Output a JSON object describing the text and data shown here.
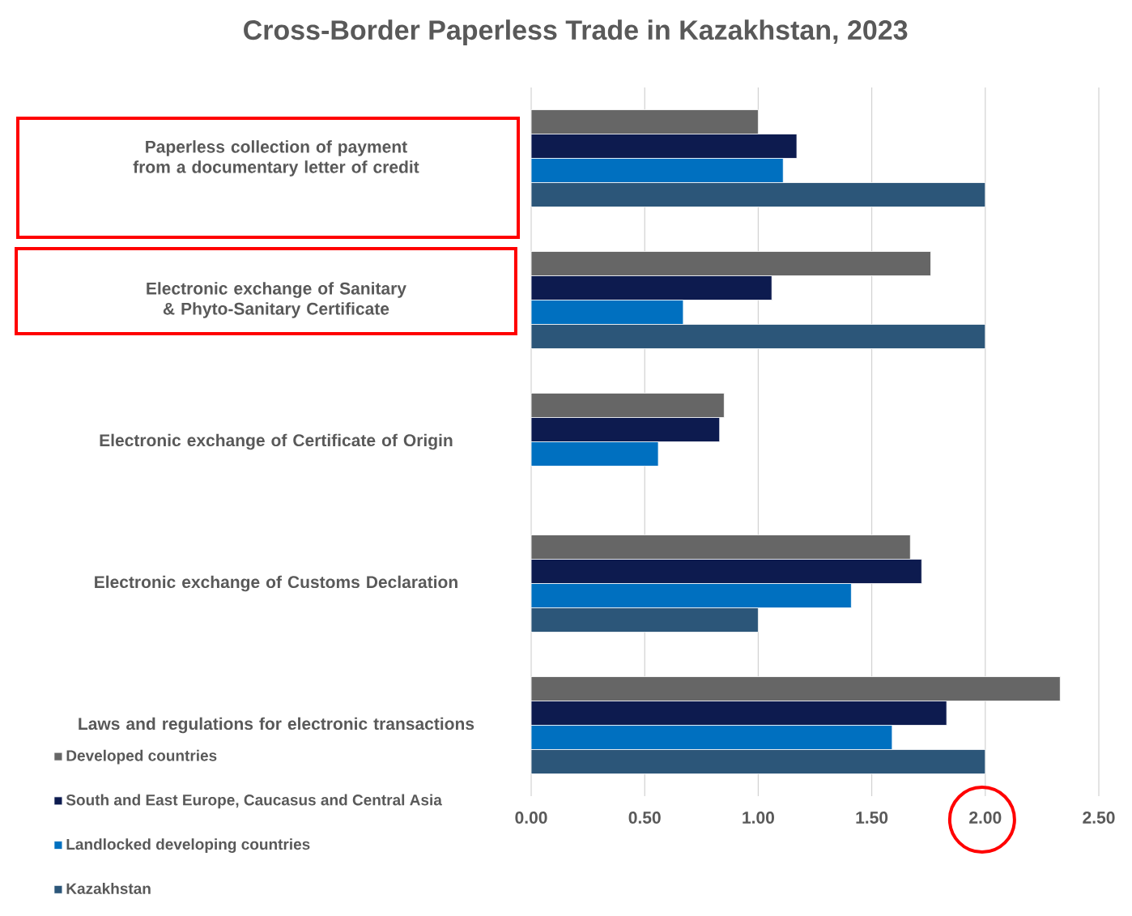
{
  "chart_data": {
    "type": "bar",
    "orientation": "horizontal",
    "title": "Cross-Border Paperless Trade in Kazakhstan, 2023",
    "categories": [
      "Paperless collection of payment from a documentary letter of credit",
      "Electronic exchange of Sanitary & Phyto-Sanitary Certificate",
      "Electronic exchange of Certificate of Origin",
      "Electronic exchange of Customs Declaration",
      "Laws and regulations for electronic transactions"
    ],
    "series": [
      {
        "name": "Developed countries",
        "color": "#666666",
        "values": [
          1.0,
          1.76,
          0.85,
          1.67,
          2.33
        ]
      },
      {
        "name": "South and East Europe, Caucasus and Central Asia",
        "color": "#0d1b4f",
        "values": [
          1.17,
          1.06,
          0.83,
          1.72,
          1.83
        ]
      },
      {
        "name": "Landlocked developing countries",
        "color": "#0070c0",
        "values": [
          1.11,
          0.67,
          0.56,
          1.41,
          1.59
        ]
      },
      {
        "name": "Kazakhstan",
        "color": "#2c5679",
        "values": [
          2.0,
          2.0,
          null,
          1.0,
          2.0
        ]
      }
    ],
    "xlim": [
      0,
      2.5
    ],
    "xticks": [
      {
        "value": 0,
        "label": "0.00"
      },
      {
        "value": 0.5,
        "label": "0.50"
      },
      {
        "value": 1,
        "label": "1.00"
      },
      {
        "value": 1.5,
        "label": "1.50"
      },
      {
        "value": 2,
        "label": "2.00"
      },
      {
        "value": 2.5,
        "label": "2.50"
      }
    ],
    "grid": "x",
    "legend": "bottom left"
  }
}
